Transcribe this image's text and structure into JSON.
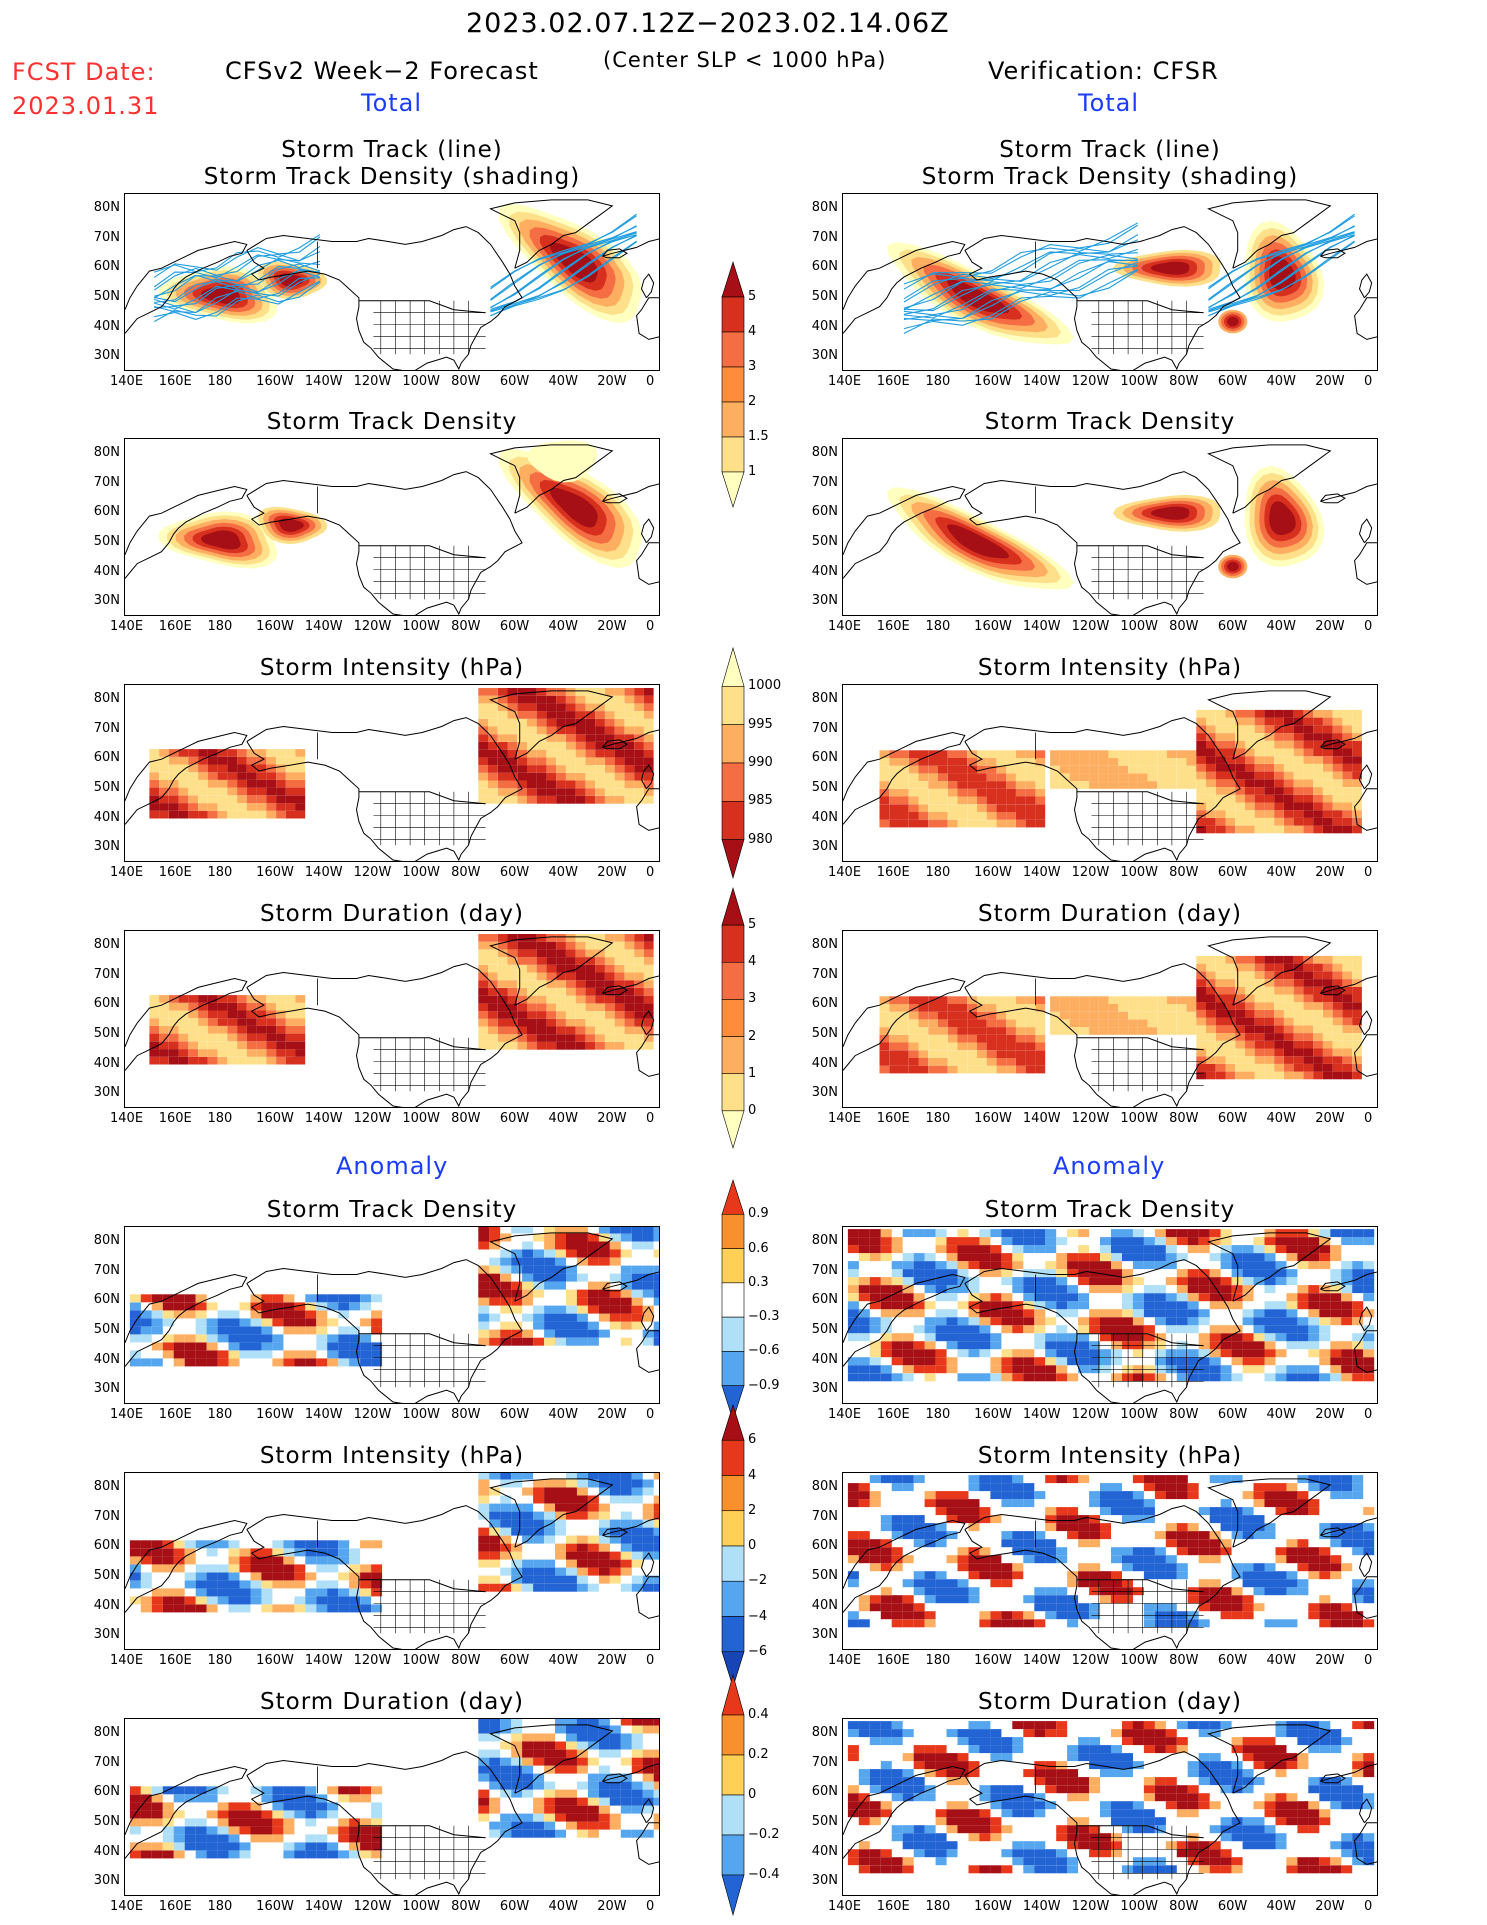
{
  "header": {
    "period": "2023.02.07.12Z−2023.02.14.06Z",
    "criterion": "(Center SLP < 1000 hPa)",
    "fcst_label": "FCST Date:",
    "fcst_date": "2023.01.31",
    "left_title": "CFSv2 Week−2 Forecast",
    "right_title": "Verification: CFSR",
    "total_label_left": "Total",
    "total_label_right": "Total",
    "anomaly_label_left": "Anomaly",
    "anomaly_label_right": "Anomaly"
  },
  "panel_titles": {
    "track_line": "Storm Track (line)",
    "track_shading": "Storm Track Density (shading)",
    "density": "Storm Track Density",
    "intensity": "Storm Intensity (hPa)",
    "duration": "Storm Duration (day)"
  },
  "axes": {
    "lat_ticks": [
      "80N",
      "70N",
      "60N",
      "50N",
      "40N",
      "30N"
    ],
    "lon_ticks": [
      "140E",
      "160E",
      "180",
      "160W",
      "140W",
      "120W",
      "100W",
      "80W",
      "60W",
      "40W",
      "20W",
      "0"
    ]
  },
  "colorbars": {
    "density_total": {
      "labels": [
        "5",
        "4",
        "3",
        "2",
        "1.5",
        "1"
      ],
      "colors": [
        "#a50f15",
        "#d7301f",
        "#f46d43",
        "#fd8d3c",
        "#fdae61",
        "#fee08b",
        "#ffffbf"
      ]
    },
    "intensity_total": {
      "labels": [
        "1000",
        "995",
        "990",
        "985",
        "980"
      ],
      "colors": [
        "#ffffbf",
        "#fee08b",
        "#fdae61",
        "#f46d43",
        "#d7301f",
        "#a50f15"
      ]
    },
    "duration_total": {
      "labels": [
        "5",
        "4",
        "3",
        "2",
        "1",
        "0"
      ],
      "colors": [
        "#a50f15",
        "#d7301f",
        "#f46d43",
        "#fd8d3c",
        "#fdae61",
        "#fee08b",
        "#ffffbf"
      ]
    },
    "density_anom": {
      "labels": [
        "0.9",
        "0.6",
        "0.3",
        "−0.3",
        "−0.6",
        "−0.9"
      ],
      "colors": [
        "#e8381c",
        "#f9902e",
        "#fed055",
        "#ffffff",
        "#b0e0f7",
        "#56a6ef",
        "#2264d4"
      ]
    },
    "intensity_anom": {
      "labels": [
        "6",
        "4",
        "2",
        "0",
        "−2",
        "−4",
        "−6"
      ],
      "colors": [
        "#a50f15",
        "#e8381c",
        "#f9902e",
        "#fed055",
        "#b0e0f7",
        "#56a6ef",
        "#2264d4",
        "#1745b5"
      ]
    },
    "duration_anom": {
      "labels": [
        "0.4",
        "0.2",
        "0",
        "−0.2",
        "−0.4"
      ],
      "colors": [
        "#e8381c",
        "#f9902e",
        "#fed055",
        "#b0e0f7",
        "#56a6ef",
        "#2264d4"
      ]
    }
  },
  "colors": {
    "dark_red": "#a50f15",
    "red": "#d7301f",
    "orange": "#f46d43",
    "light_orange": "#fdae61",
    "yellow": "#fee08b",
    "pale_yellow": "#ffffbf",
    "light_blue": "#b0e0f7",
    "mid_blue": "#56a6ef",
    "dark_blue": "#2264d4",
    "track_line": "#1e9de0"
  }
}
